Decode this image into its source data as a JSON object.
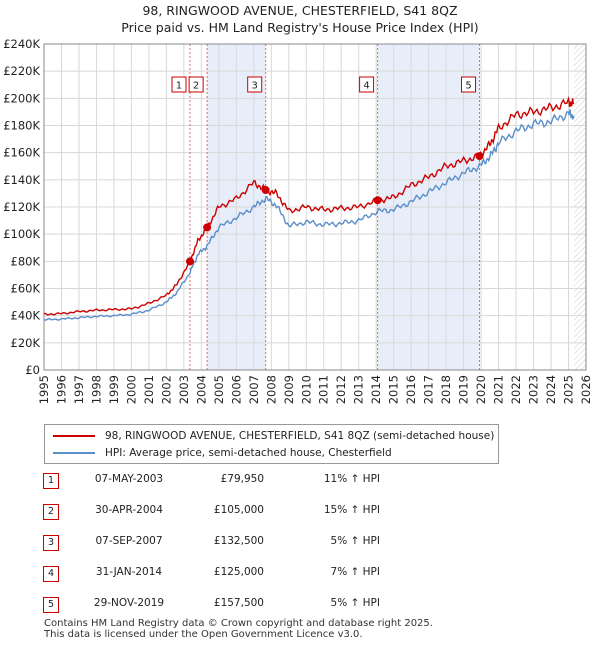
{
  "title": {
    "line1": "98, RINGWOOD AVENUE, CHESTERFIELD, S41 8QZ",
    "line2": "Price paid vs. HM Land Registry's House Price Index (HPI)"
  },
  "colors": {
    "property": "#cc0000",
    "hpi": "#5b8fc9",
    "shade": "#e8eef9",
    "grid": "#d8d8d8",
    "marker_line": "#e06666"
  },
  "chart_data": {
    "type": "line",
    "title": "Price paid vs. HM Land Registry's House Price Index (HPI)",
    "xlabel": "",
    "ylabel": "",
    "xlim": [
      1995,
      2026
    ],
    "ylim": [
      0,
      240000
    ],
    "y_ticks": [
      0,
      20000,
      40000,
      60000,
      80000,
      100000,
      120000,
      140000,
      160000,
      180000,
      200000,
      220000,
      240000
    ],
    "y_tick_labels": [
      "£0",
      "£20K",
      "£40K",
      "£60K",
      "£80K",
      "£100K",
      "£120K",
      "£140K",
      "£160K",
      "£180K",
      "£200K",
      "£220K",
      "£240K"
    ],
    "x_ticks": [
      1995,
      1996,
      1997,
      1998,
      1999,
      2000,
      2001,
      2002,
      2003,
      2004,
      2005,
      2006,
      2007,
      2008,
      2009,
      2010,
      2011,
      2012,
      2013,
      2014,
      2015,
      2016,
      2017,
      2018,
      2019,
      2020,
      2021,
      2022,
      2023,
      2024,
      2025,
      2026
    ],
    "shaded_ranges": [
      [
        2004.33,
        2007.68
      ],
      [
        2014.08,
        2019.91
      ]
    ],
    "data_end": 2025.3,
    "series": [
      {
        "name": "98, RINGWOOD AVENUE, CHESTERFIELD, S41 8QZ (semi-detached house)",
        "x": [
          1995,
          1996,
          1997,
          1998,
          1999,
          2000,
          2001,
          2002,
          2002.6,
          2003.35,
          2003.8,
          2004.33,
          2005,
          2006,
          2007,
          2007.68,
          2008.3,
          2009,
          2010,
          2011,
          2012,
          2013,
          2014.08,
          2015,
          2016,
          2017,
          2018,
          2019,
          2019.91,
          2020.5,
          2021,
          2022,
          2023,
          2024,
          2025,
          2025.3
        ],
        "values": [
          41000,
          41500,
          43000,
          44000,
          44500,
          45000,
          49000,
          55000,
          63000,
          79950,
          95000,
          105000,
          120000,
          126000,
          138000,
          132500,
          130000,
          117000,
          120000,
          118000,
          119000,
          120000,
          125000,
          127000,
          136000,
          142000,
          150000,
          154000,
          157500,
          166000,
          178000,
          188000,
          190000,
          193000,
          197000,
          196000
        ]
      },
      {
        "name": "HPI: Average price, semi-detached house, Chesterfield",
        "x": [
          1995,
          1996,
          1997,
          1998,
          1999,
          2000,
          2001,
          2002,
          2002.6,
          2003.35,
          2003.8,
          2004.33,
          2005,
          2006,
          2007,
          2007.68,
          2008.3,
          2009,
          2010,
          2011,
          2012,
          2013,
          2014.08,
          2015,
          2016,
          2017,
          2018,
          2019,
          2019.91,
          2020.5,
          2021,
          2022,
          2023,
          2024,
          2025,
          2025.3
        ],
        "values": [
          37000,
          37500,
          38500,
          39500,
          40000,
          41000,
          44000,
          50000,
          57000,
          71900,
          85000,
          91300,
          105000,
          112000,
          120000,
          126200,
          121000,
          106000,
          109000,
          107000,
          108000,
          110000,
          116800,
          118000,
          124000,
          131000,
          138000,
          145000,
          150000,
          157000,
          167000,
          176000,
          181000,
          183000,
          189000,
          187000
        ]
      }
    ],
    "sales": [
      {
        "n": "1",
        "x": 2003.35,
        "value": 79950
      },
      {
        "n": "2",
        "x": 2004.33,
        "value": 105000
      },
      {
        "n": "3",
        "x": 2007.68,
        "value": 132500
      },
      {
        "n": "4",
        "x": 2014.08,
        "value": 125000
      },
      {
        "n": "5",
        "x": 2019.91,
        "value": 157500
      }
    ]
  },
  "legend": {
    "property": "98, RINGWOOD AVENUE, CHESTERFIELD, S41 8QZ (semi-detached house)",
    "hpi": "HPI: Average price, semi-detached house, Chesterfield"
  },
  "transactions": [
    {
      "n": "1",
      "date": "07-MAY-2003",
      "price": "£79,950",
      "hpi": "11% ↑ HPI"
    },
    {
      "n": "2",
      "date": "30-APR-2004",
      "price": "£105,000",
      "hpi": "15% ↑ HPI"
    },
    {
      "n": "3",
      "date": "07-SEP-2007",
      "price": "£132,500",
      "hpi": "5% ↑ HPI"
    },
    {
      "n": "4",
      "date": "31-JAN-2014",
      "price": "£125,000",
      "hpi": "7% ↑ HPI"
    },
    {
      "n": "5",
      "date": "29-NOV-2019",
      "price": "£157,500",
      "hpi": "5% ↑ HPI"
    }
  ],
  "footer": {
    "line1": "Contains HM Land Registry data © Crown copyright and database right 2025.",
    "line2": "This data is licensed under the Open Government Licence v3.0."
  }
}
